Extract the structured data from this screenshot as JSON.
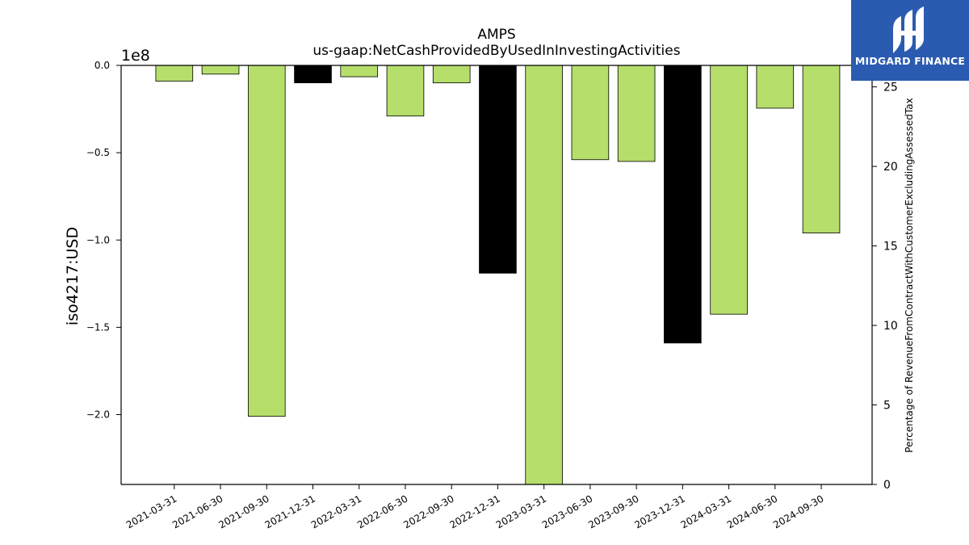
{
  "chart_data": {
    "type": "bar",
    "title": "AMPS",
    "subtitle": "us-gaap:NetCashProvidedByUsedInInvestingActivities",
    "ylabel": "iso4217:USD",
    "y_offset_label": "1e8",
    "y2label": "Percentage of RevenueFromContractWithCustomerExcludingAssessedTax",
    "categories": [
      "2021-03-31",
      "2021-06-30",
      "2021-09-30",
      "2021-12-31",
      "2022-03-31",
      "2022-06-30",
      "2022-09-30",
      "2022-12-31",
      "2023-03-31",
      "2023-06-30",
      "2023-09-30",
      "2023-12-31",
      "2024-03-31",
      "2024-06-30",
      "2024-09-30"
    ],
    "values": [
      -9000000,
      -5000000,
      -201000000,
      -10000000,
      -6500000,
      -29000000,
      -10000000,
      -119000000,
      -240000000,
      -54000000,
      -55000000,
      -159000000,
      -142500000,
      -24500000,
      -96000000
    ],
    "bar_colors": [
      "#b5de6b",
      "#b5de6b",
      "#b5de6b",
      "#000000",
      "#b5de6b",
      "#b5de6b",
      "#b5de6b",
      "#000000",
      "#b5de6b",
      "#b5de6b",
      "#b5de6b",
      "#000000",
      "#b5de6b",
      "#b5de6b",
      "#b5de6b"
    ],
    "ylim": [
      -240000000,
      0
    ],
    "yticks": [
      0,
      -50000000,
      -100000000,
      -150000000,
      -200000000
    ],
    "ytick_labels": [
      "0.0",
      "−0.5",
      "−1.0",
      "−1.5",
      "−2.0"
    ],
    "y2lim": [
      0,
      26.35
    ],
    "y2ticks": [
      0,
      5,
      10,
      15,
      20,
      25
    ],
    "y2tick_labels": [
      "0",
      "5",
      "10",
      "15",
      "20",
      "25"
    ],
    "grid": false,
    "legend": "none"
  },
  "logo": {
    "text": "MIDGARD FINANCE",
    "color": "#2b5bb0"
  }
}
